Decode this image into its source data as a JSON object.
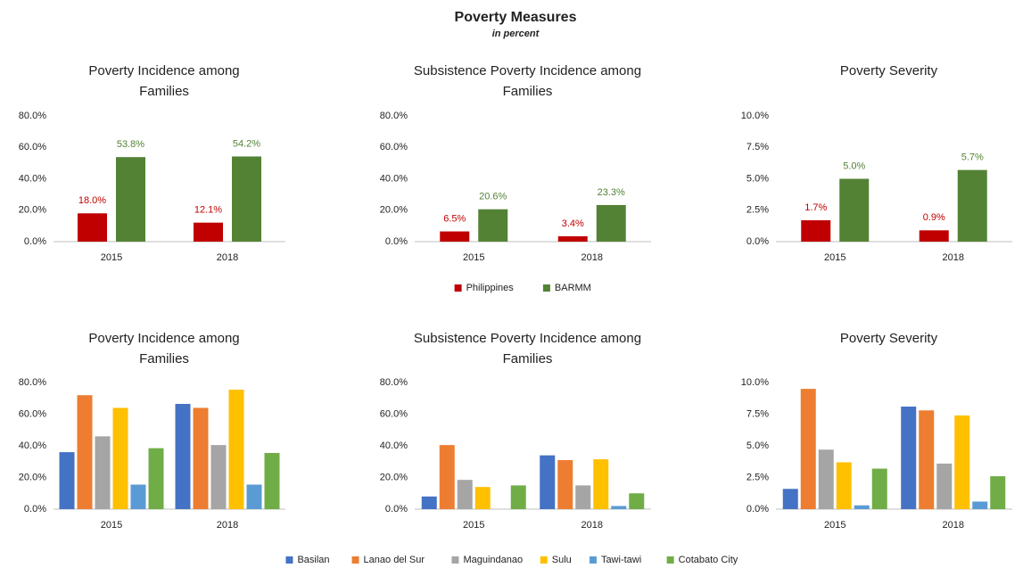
{
  "title": "Poverty Measures",
  "subtitle": "in percent",
  "chart_data": [
    {
      "type": "bar",
      "title": "Poverty Incidence among Families",
      "categories": [
        "2015",
        "2018"
      ],
      "ylim": [
        0,
        80
      ],
      "yticks": [
        {
          "value": 0,
          "label": "0.0%"
        },
        {
          "value": 20,
          "label": "20.0%"
        },
        {
          "value": 40,
          "label": "40.0%"
        },
        {
          "value": 60,
          "label": "60.0%"
        },
        {
          "value": 80,
          "label": "80.0%"
        }
      ],
      "series": [
        {
          "name": "Philippines",
          "color": "#c00000",
          "values": [
            18.0,
            12.1
          ],
          "value_labels": [
            "18.0%",
            "12.1%"
          ]
        },
        {
          "name": "BARMM",
          "color": "#548235",
          "values": [
            53.8,
            54.2
          ],
          "value_labels": [
            "53.8%",
            "54.2%"
          ]
        }
      ]
    },
    {
      "type": "bar",
      "title": "Subsistence Poverty Incidence among Families",
      "categories": [
        "2015",
        "2018"
      ],
      "ylim": [
        0,
        80
      ],
      "yticks": [
        {
          "value": 0,
          "label": "0.0%"
        },
        {
          "value": 20,
          "label": "20.0%"
        },
        {
          "value": 40,
          "label": "40.0%"
        },
        {
          "value": 60,
          "label": "60.0%"
        },
        {
          "value": 80,
          "label": "80.0%"
        }
      ],
      "series": [
        {
          "name": "Philippines",
          "color": "#c00000",
          "values": [
            6.5,
            3.4
          ],
          "value_labels": [
            "6.5%",
            "3.4%"
          ]
        },
        {
          "name": "BARMM",
          "color": "#548235",
          "values": [
            20.6,
            23.3
          ],
          "value_labels": [
            "20.6%",
            "23.3%"
          ]
        }
      ]
    },
    {
      "type": "bar",
      "title": "Poverty Severity",
      "categories": [
        "2015",
        "2018"
      ],
      "ylim": [
        0,
        10
      ],
      "yticks": [
        {
          "value": 0,
          "label": "0.0%"
        },
        {
          "value": 2.5,
          "label": "2.5%"
        },
        {
          "value": 5,
          "label": "5.0%"
        },
        {
          "value": 7.5,
          "label": "7.5%"
        },
        {
          "value": 10,
          "label": "10.0%"
        }
      ],
      "series": [
        {
          "name": "Philippines",
          "color": "#c00000",
          "values": [
            1.7,
            0.9
          ],
          "value_labels": [
            "1.7%",
            "0.9%"
          ]
        },
        {
          "name": "BARMM",
          "color": "#548235",
          "values": [
            5.0,
            5.7
          ],
          "value_labels": [
            "5.0%",
            "5.7%"
          ]
        }
      ]
    },
    {
      "type": "bar",
      "title": "Poverty Incidence among Families",
      "categories": [
        "2015",
        "2018"
      ],
      "ylim": [
        0,
        80
      ],
      "yticks": [
        {
          "value": 0,
          "label": "0.0%"
        },
        {
          "value": 20,
          "label": "20.0%"
        },
        {
          "value": 40,
          "label": "40.0%"
        },
        {
          "value": 60,
          "label": "60.0%"
        },
        {
          "value": 80,
          "label": "80.0%"
        }
      ],
      "series": [
        {
          "name": "Basilan",
          "color": "#4472c4",
          "values": [
            36,
            66.5
          ]
        },
        {
          "name": "Lanao del Sur",
          "color": "#ed7d31",
          "values": [
            72,
            64
          ]
        },
        {
          "name": "Maguindanao",
          "color": "#a5a5a5",
          "values": [
            46,
            40.5
          ]
        },
        {
          "name": "Sulu",
          "color": "#ffc000",
          "values": [
            64,
            75.5
          ]
        },
        {
          "name": "Tawi-tawi",
          "color": "#5b9bd5",
          "values": [
            15.5,
            15.5
          ]
        },
        {
          "name": "Cotabato City",
          "color": "#70ad47",
          "values": [
            38.5,
            35.5
          ]
        }
      ]
    },
    {
      "type": "bar",
      "title": "Subsistence Poverty Incidence among Families",
      "categories": [
        "2015",
        "2018"
      ],
      "ylim": [
        0,
        80
      ],
      "yticks": [
        {
          "value": 0,
          "label": "0.0%"
        },
        {
          "value": 20,
          "label": "20.0%"
        },
        {
          "value": 40,
          "label": "40.0%"
        },
        {
          "value": 60,
          "label": "60.0%"
        },
        {
          "value": 80,
          "label": "80.0%"
        }
      ],
      "series": [
        {
          "name": "Basilan",
          "color": "#4472c4",
          "values": [
            8,
            34
          ]
        },
        {
          "name": "Lanao del Sur",
          "color": "#ed7d31",
          "values": [
            40.5,
            31
          ]
        },
        {
          "name": "Maguindanao",
          "color": "#a5a5a5",
          "values": [
            18.5,
            15
          ]
        },
        {
          "name": "Sulu",
          "color": "#ffc000",
          "values": [
            14,
            31.5
          ]
        },
        {
          "name": "Tawi-tawi",
          "color": "#5b9bd5",
          "values": [
            null,
            2
          ]
        },
        {
          "name": "Cotabato City",
          "color": "#70ad47",
          "values": [
            15,
            10
          ]
        }
      ]
    },
    {
      "type": "bar",
      "title": "Poverty Severity",
      "categories": [
        "2015",
        "2018"
      ],
      "ylim": [
        0,
        10
      ],
      "yticks": [
        {
          "value": 0,
          "label": "0.0%"
        },
        {
          "value": 2.5,
          "label": "2.5%"
        },
        {
          "value": 5,
          "label": "5.0%"
        },
        {
          "value": 7.5,
          "label": "7.5%"
        },
        {
          "value": 10,
          "label": "10.0%"
        }
      ],
      "series": [
        {
          "name": "Basilan",
          "color": "#4472c4",
          "values": [
            1.6,
            8.1
          ]
        },
        {
          "name": "Lanao del Sur",
          "color": "#ed7d31",
          "values": [
            9.5,
            7.8
          ]
        },
        {
          "name": "Maguindanao",
          "color": "#a5a5a5",
          "values": [
            4.7,
            3.6
          ]
        },
        {
          "name": "Sulu",
          "color": "#ffc000",
          "values": [
            3.7,
            7.4
          ]
        },
        {
          "name": "Tawi-tawi",
          "color": "#5b9bd5",
          "values": [
            0.3,
            0.6
          ]
        },
        {
          "name": "Cotabato City",
          "color": "#70ad47",
          "values": [
            3.2,
            2.6
          ]
        }
      ]
    }
  ]
}
